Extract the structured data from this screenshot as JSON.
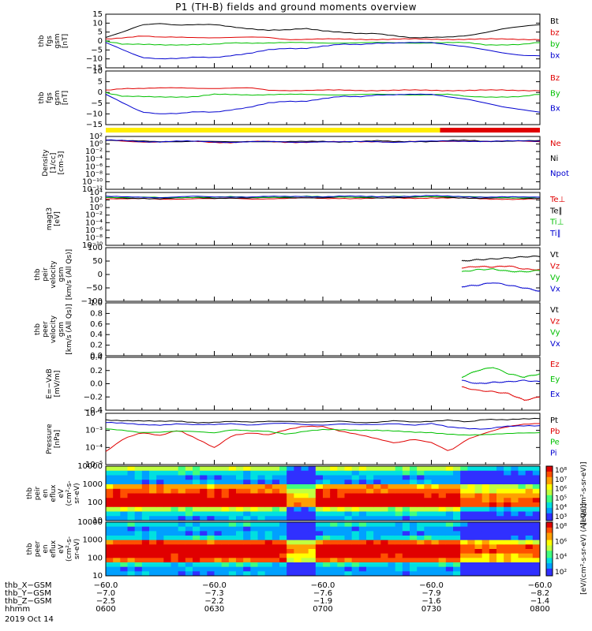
{
  "title": "P1 (TH-B) fields and ground moments overview",
  "colors": {
    "black": "#000000",
    "red": "#e00000",
    "green": "#00c000",
    "blue": "#0000d0",
    "yellow": "#ffee00",
    "flagred": "#e00000"
  },
  "chart_data": [
    {
      "type": "line",
      "ylabel": [
        "thb",
        "fgs",
        "gsm",
        "[nT]"
      ],
      "yticks": [
        "15",
        "10",
        "5",
        "0",
        "−5",
        "−10",
        "−15"
      ],
      "ylim": [
        -15,
        15
      ],
      "series": [
        {
          "name": "Bt",
          "color": "#000000",
          "y": [
            2,
            5,
            9,
            10,
            9,
            9,
            9,
            8,
            7,
            6,
            6,
            7,
            6,
            5,
            4,
            4,
            3,
            2,
            2,
            2,
            3,
            5,
            7,
            8,
            9
          ]
        },
        {
          "name": "bz",
          "color": "#e00000",
          "y": [
            1,
            2,
            3,
            2,
            2,
            2,
            2,
            2,
            2,
            2,
            1,
            1,
            1,
            1,
            1,
            1,
            1,
            1,
            1,
            1,
            1,
            1,
            1,
            1,
            1
          ]
        },
        {
          "name": "by",
          "color": "#00c000",
          "y": [
            0,
            -2,
            -2,
            -2,
            -2,
            -2,
            -2,
            -1,
            -1,
            -1,
            -1,
            -1,
            -1,
            -1,
            -1,
            -1,
            -1,
            -1,
            -1,
            -1,
            -1,
            -2,
            -2,
            -2,
            -1
          ]
        },
        {
          "name": "bx",
          "color": "#0000d0",
          "y": [
            -1,
            -5,
            -9,
            -10,
            -10,
            -9,
            -9,
            -8,
            -7,
            -5,
            -4,
            -4,
            -3,
            -2,
            -2,
            -1,
            -1,
            -1,
            -1,
            -2,
            -3,
            -5,
            -7,
            -8,
            -8
          ]
        }
      ],
      "legend": [
        "Bt",
        "bz",
        "by",
        "bx"
      ]
    },
    {
      "type": "line",
      "ylabel": [
        "thb",
        "fgs",
        "gsm",
        "[nT]"
      ],
      "yticks": [
        "10",
        "5",
        "0",
        "−5",
        "−10",
        "−15"
      ],
      "ylim": [
        -15,
        10
      ],
      "series": [
        {
          "name": "Bz",
          "color": "#e00000",
          "y": [
            1,
            2,
            2,
            2,
            2,
            2,
            2,
            2,
            2,
            1,
            1,
            1,
            1,
            1,
            1,
            1,
            1,
            1,
            1,
            1,
            1,
            1,
            1,
            1,
            1
          ]
        },
        {
          "name": "By",
          "color": "#00c000",
          "y": [
            0,
            -2,
            -2,
            -2,
            -2,
            -2,
            -1,
            -1,
            -1,
            -1,
            -1,
            -1,
            -1,
            -1,
            -1,
            -1,
            -1,
            -1,
            -1,
            -1,
            -2,
            -2,
            -2,
            -2,
            -1
          ]
        },
        {
          "name": "Bx",
          "color": "#0000d0",
          "y": [
            -1,
            -5,
            -9,
            -10,
            -10,
            -9,
            -9,
            -8,
            -7,
            -5,
            -4,
            -4,
            -3,
            -2,
            -2,
            -1,
            -1,
            -1,
            -1,
            -2,
            -3,
            -5,
            -7,
            -8,
            -9
          ]
        }
      ],
      "legend": [
        "Bz",
        "By",
        "Bx"
      ]
    },
    {
      "type": "bar",
      "note_flag": [
        {
          "from": 0,
          "to": 0.77,
          "color": "#ffee00"
        },
        {
          "from": 0.77,
          "to": 1.0,
          "color": "#e00000"
        }
      ]
    },
    {
      "type": "line",
      "ylabel": [
        "Density",
        "[1/cc]",
        "[cm-3]"
      ],
      "yticks": [
        "10²",
        "10⁰",
        "10⁻²",
        "10⁻⁴",
        "10⁻⁶",
        "10⁻⁸",
        "10⁻¹⁰",
        "10⁻¹²"
      ],
      "ylim": [
        -12,
        2
      ],
      "log": true,
      "series": [
        {
          "name": "Ne",
          "color": "#e00000",
          "y": [
            1,
            0.8,
            0.6,
            0.5,
            0.6,
            0.7,
            0.5,
            0.4,
            0.6,
            0.6,
            0.5,
            0.5,
            0.6,
            0.5,
            0.6,
            0.7,
            0.5,
            0.6,
            0.6,
            0.8,
            0.8,
            0.6,
            0.7,
            0.8,
            0.7
          ]
        },
        {
          "name": "Ni",
          "color": "#000000",
          "y": [
            1.1,
            0.9,
            0.7,
            0.6,
            0.7,
            0.8,
            0.6,
            0.5,
            0.7,
            0.7,
            0.6,
            0.6,
            0.7,
            0.6,
            0.7,
            0.8,
            0.6,
            0.7,
            0.7,
            0.9,
            0.9,
            0.7,
            0.8,
            0.9,
            0.8
          ]
        },
        {
          "name": "Npot",
          "color": "#0000d0",
          "y": [
            1,
            0.9,
            0.7,
            0.6,
            0.7,
            0.7,
            0.6,
            0.5,
            0.6,
            0.6,
            0.5,
            0.6,
            0.6,
            0.5,
            0.6,
            0.7,
            0.5,
            0.6,
            0.7,
            0.8,
            0.8,
            0.7,
            0.7,
            0.8,
            0.8
          ]
        }
      ],
      "legend": [
        "Ne",
        "Ni",
        "Npot"
      ]
    },
    {
      "type": "line",
      "ylabel": [
        "magt3",
        "[eV]"
      ],
      "yticks": [
        "10⁴",
        "10²",
        "10⁰",
        "10⁻²",
        "10⁻⁴",
        "10⁻⁶",
        "10⁻⁸",
        "10⁻¹⁰"
      ],
      "ylim": [
        -10,
        4
      ],
      "log": true,
      "series": [
        {
          "name": "Te⊥",
          "color": "#e00000",
          "y": [
            2.4,
            2.3,
            2.3,
            2.2,
            2.3,
            2.4,
            2.3,
            2.4,
            2.3,
            2.4,
            2.4,
            2.5,
            2.4,
            2.5,
            2.4,
            2.4,
            2.5,
            2.5,
            2.6,
            2.5,
            2.4,
            2.3,
            2.3,
            2.2,
            2.3
          ]
        },
        {
          "name": "Te∥",
          "color": "#000000",
          "y": [
            2.6,
            2.5,
            2.5,
            2.4,
            2.5,
            2.6,
            2.5,
            2.6,
            2.5,
            2.6,
            2.6,
            2.7,
            2.6,
            2.7,
            2.6,
            2.6,
            2.7,
            2.7,
            2.8,
            2.7,
            2.6,
            2.5,
            2.5,
            2.4,
            2.5
          ]
        },
        {
          "name": "Ti⊥",
          "color": "#00c000",
          "y": [
            2.8,
            2.7,
            2.7,
            2.6,
            2.7,
            2.8,
            2.7,
            2.8,
            2.7,
            2.8,
            2.8,
            2.9,
            2.8,
            2.9,
            2.8,
            2.8,
            2.9,
            2.9,
            3.0,
            2.9,
            2.8,
            2.7,
            2.7,
            2.6,
            2.7
          ]
        },
        {
          "name": "Ti∥",
          "color": "#0000d0",
          "y": [
            2.9,
            2.8,
            2.8,
            2.7,
            2.8,
            2.9,
            2.8,
            2.9,
            2.8,
            2.9,
            2.9,
            3.0,
            2.9,
            3.0,
            2.9,
            2.9,
            3.0,
            3.0,
            3.1,
            3.0,
            2.9,
            2.8,
            2.8,
            2.7,
            2.8
          ]
        }
      ],
      "legend": [
        "Te⊥",
        "Te∥",
        "Ti⊥",
        "Ti∥"
      ]
    },
    {
      "type": "line",
      "ylabel": [
        "thb",
        "peir",
        "velocity",
        "gsm",
        "[km/s (All Qs)]"
      ],
      "yticks": [
        "100",
        "50",
        "0",
        "−50",
        "−100"
      ],
      "ylim": [
        -100,
        100
      ],
      "series": [
        {
          "name": "Vt",
          "color": "#000000",
          "x": [
            0.82,
            0.86,
            0.9,
            0.94,
            0.98,
            1.0
          ],
          "y": [
            50,
            55,
            58,
            62,
            66,
            68
          ]
        },
        {
          "name": "Vz",
          "color": "#e00000",
          "x": [
            0.82,
            0.86,
            0.9,
            0.94,
            0.98,
            1.0
          ],
          "y": [
            25,
            30,
            28,
            32,
            20,
            18
          ]
        },
        {
          "name": "Vy",
          "color": "#00c000",
          "x": [
            0.82,
            0.86,
            0.9,
            0.94,
            0.98,
            1.0
          ],
          "y": [
            10,
            18,
            20,
            12,
            10,
            15
          ]
        },
        {
          "name": "Vx",
          "color": "#0000d0",
          "x": [
            0.82,
            0.86,
            0.9,
            0.94,
            0.98,
            1.0
          ],
          "y": [
            -45,
            -40,
            -30,
            -40,
            -50,
            -62
          ]
        }
      ],
      "legend": [
        "Vt",
        "Vz",
        "Vy",
        "Vx"
      ]
    },
    {
      "type": "line",
      "ylabel": [
        "thb",
        "peer",
        "velocity",
        "gsm",
        "[km/s (All Qs)]"
      ],
      "yticks": [
        "1.0",
        "0.8",
        "0.6",
        "0.4",
        "0.2",
        "0.0"
      ],
      "ylim": [
        0,
        1
      ],
      "series": [],
      "legend": [
        "Vt",
        "Vz",
        "Vy",
        "Vx"
      ]
    },
    {
      "type": "line",
      "ylabel": [
        "E=−VxB",
        "[mV/m]"
      ],
      "yticks": [
        "0.4",
        "0.2",
        "0.0",
        "−0.2",
        "−0.4"
      ],
      "ylim": [
        -0.4,
        0.4
      ],
      "series": [
        {
          "name": "Ez",
          "color": "#e00000",
          "x": [
            0.82,
            0.86,
            0.9,
            0.94,
            0.98,
            1.0
          ],
          "y": [
            -0.05,
            -0.1,
            -0.12,
            -0.15,
            -0.25,
            -0.2
          ]
        },
        {
          "name": "Ey",
          "color": "#00c000",
          "x": [
            0.82,
            0.86,
            0.9,
            0.94,
            0.98,
            1.0
          ],
          "y": [
            0.1,
            0.2,
            0.25,
            0.15,
            0.1,
            0.15
          ]
        },
        {
          "name": "Ex",
          "color": "#0000d0",
          "x": [
            0.82,
            0.86,
            0.9,
            0.94,
            0.98,
            1.0
          ],
          "y": [
            0.05,
            0.0,
            0.02,
            0.03,
            0.05,
            0.03
          ]
        }
      ],
      "legend": [
        "Ez",
        "Ey",
        "Ex"
      ]
    },
    {
      "type": "line",
      "ylabel": [
        "Pressure",
        "[nPa]"
      ],
      "yticks": [
        "10⁻²",
        "10⁻³",
        "10⁻⁴",
        "10⁻⁵"
      ],
      "ylim": [
        -5.5,
        -1.5
      ],
      "log": true,
      "series": [
        {
          "name": "Pt",
          "color": "#000000",
          "y": [
            -2.0,
            -2.05,
            -2.1,
            -2.15,
            -2.1,
            -2.2,
            -2.2,
            -2.15,
            -2.2,
            -2.1,
            -2.1,
            -2.2,
            -2.2,
            -2.1,
            -2.2,
            -2.2,
            -2.1,
            -2.2,
            -2.1,
            -2.0,
            -2.2,
            -2.0,
            -2.0,
            -1.9,
            -1.9
          ]
        },
        {
          "name": "Pb",
          "color": "#e00000",
          "y": [
            -4.5,
            -3.5,
            -3.0,
            -3.2,
            -2.8,
            -3.5,
            -4.2,
            -3.2,
            -3.0,
            -3.2,
            -2.8,
            -2.5,
            -2.5,
            -2.9,
            -3.2,
            -3.5,
            -3.8,
            -3.5,
            -3.8,
            -4.5,
            -3.5,
            -3.0,
            -2.6,
            -2.4,
            -2.3
          ]
        },
        {
          "name": "Pe",
          "color": "#00c000",
          "y": [
            -2.7,
            -2.8,
            -3.0,
            -3.0,
            -2.9,
            -2.9,
            -3.0,
            -2.8,
            -2.9,
            -2.9,
            -3.1,
            -2.9,
            -2.8,
            -2.8,
            -2.8,
            -2.8,
            -2.9,
            -3.0,
            -3.0,
            -3.1,
            -3.2,
            -3.2,
            -3.1,
            -3.0,
            -3.0
          ]
        },
        {
          "name": "Pi",
          "color": "#0000d0",
          "y": [
            -2.2,
            -2.3,
            -2.4,
            -2.4,
            -2.3,
            -2.4,
            -2.4,
            -2.3,
            -2.4,
            -2.3,
            -2.3,
            -2.4,
            -2.4,
            -2.3,
            -2.4,
            -2.4,
            -2.3,
            -2.4,
            -2.3,
            -2.6,
            -2.7,
            -2.7,
            -2.5,
            -2.5,
            -2.5
          ]
        }
      ],
      "legend": [
        "Pt",
        "Pb",
        "Pe",
        "Pi"
      ]
    },
    {
      "type": "heatmap",
      "ylabel": [
        "thb",
        "peir",
        "en",
        "eflux",
        "eV",
        "(cm²-s-",
        "sr-eV)"
      ],
      "yticks": [
        "10000",
        "1000",
        "100",
        "10"
      ],
      "colorbar_ticks": [
        "10⁸",
        "10⁷",
        "10⁶",
        "10⁵",
        "10⁴",
        "10³"
      ],
      "colorbar_label": "[eV/(cm²-s-sr-eV)]"
    },
    {
      "type": "heatmap",
      "ylabel": [
        "thb",
        "peer",
        "en",
        "eflux",
        "eV",
        "(cm²-s-",
        "sr-eV)"
      ],
      "yticks": [
        "10000",
        "1000",
        "100",
        "10"
      ],
      "colorbar_ticks": [
        "10⁸",
        "10⁶",
        "10⁴",
        "10²"
      ],
      "colorbar_label": "[eV/(cm²-s-sr-eV) (All Qs)]"
    }
  ],
  "xaxis": {
    "rows": [
      {
        "label": "thb_X−GSM",
        "values": [
          "−60.0",
          "−60.0",
          "−60.0",
          "−60.0",
          "−60.0"
        ]
      },
      {
        "label": "thb_Y−GSM",
        "values": [
          "−7.0",
          "−7.3",
          "−7.6",
          "−7.9",
          "−8.2"
        ]
      },
      {
        "label": "thb_Z−GSM",
        "values": [
          "−2.5",
          "−2.2",
          "−1.9",
          "−1.6",
          "−1.4"
        ]
      },
      {
        "label": "hhmm",
        "values": [
          "0600",
          "0630",
          "0700",
          "0730",
          "0800"
        ]
      }
    ],
    "date": "2019 Oct 14"
  }
}
